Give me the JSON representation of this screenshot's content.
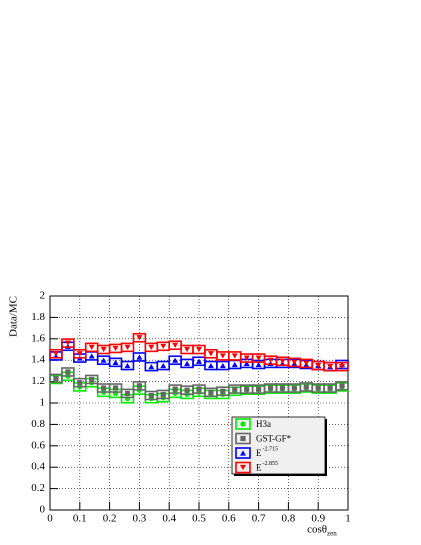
{
  "chart_data": {
    "type": "line",
    "ylabel": "Data/MC",
    "xlabel": "cosθ",
    "xlabel_subscript": "zen",
    "x": [
      0.02,
      0.06,
      0.1,
      0.14,
      0.18,
      0.22,
      0.26,
      0.3,
      0.34,
      0.38,
      0.42,
      0.46,
      0.5,
      0.54,
      0.58,
      0.62,
      0.66,
      0.7,
      0.74,
      0.78,
      0.82,
      0.86,
      0.9,
      0.94,
      0.98
    ],
    "xlim": [
      0,
      1
    ],
    "xticks": [
      0,
      0.1,
      0.2,
      0.3,
      0.4,
      0.5,
      0.6,
      0.7,
      0.8,
      0.9,
      1
    ],
    "ylim": [
      0,
      2
    ],
    "yticks": [
      0,
      0.2,
      0.4,
      0.6,
      0.8,
      1,
      1.2,
      1.4,
      1.6,
      1.8,
      2
    ],
    "grid": true,
    "legend": "lower right",
    "series": [
      {
        "name": "H3a",
        "color": "#00ee00",
        "marker": "circle",
        "values": [
          1.22,
          1.25,
          1.15,
          1.19,
          1.1,
          1.09,
          1.04,
          1.12,
          1.04,
          1.05,
          1.09,
          1.08,
          1.1,
          1.08,
          1.08,
          1.11,
          1.12,
          1.12,
          1.13,
          1.13,
          1.13,
          1.14,
          1.13,
          1.13,
          1.15
        ]
      },
      {
        "name": "GST-GF*",
        "color": "#666666",
        "marker": "square",
        "values": [
          1.23,
          1.29,
          1.19,
          1.22,
          1.14,
          1.14,
          1.09,
          1.16,
          1.07,
          1.08,
          1.13,
          1.12,
          1.13,
          1.1,
          1.11,
          1.13,
          1.13,
          1.13,
          1.14,
          1.14,
          1.14,
          1.15,
          1.14,
          1.14,
          1.16
        ]
      },
      {
        "name": "E",
        "name_superscript": "-2.715",
        "color": "#0000ff",
        "marker": "triangle-up",
        "values": [
          1.44,
          1.53,
          1.42,
          1.44,
          1.4,
          1.38,
          1.35,
          1.43,
          1.34,
          1.35,
          1.4,
          1.37,
          1.39,
          1.35,
          1.35,
          1.36,
          1.37,
          1.36,
          1.37,
          1.37,
          1.37,
          1.36,
          1.35,
          1.34,
          1.36
        ]
      },
      {
        "name": "E",
        "name_superscript": "-2.855",
        "color": "#ff0000",
        "marker": "triangle-down",
        "values": [
          1.46,
          1.56,
          1.46,
          1.52,
          1.5,
          1.51,
          1.52,
          1.61,
          1.52,
          1.53,
          1.54,
          1.5,
          1.5,
          1.46,
          1.44,
          1.44,
          1.42,
          1.42,
          1.4,
          1.39,
          1.38,
          1.37,
          1.35,
          1.34,
          1.34
        ]
      }
    ]
  }
}
